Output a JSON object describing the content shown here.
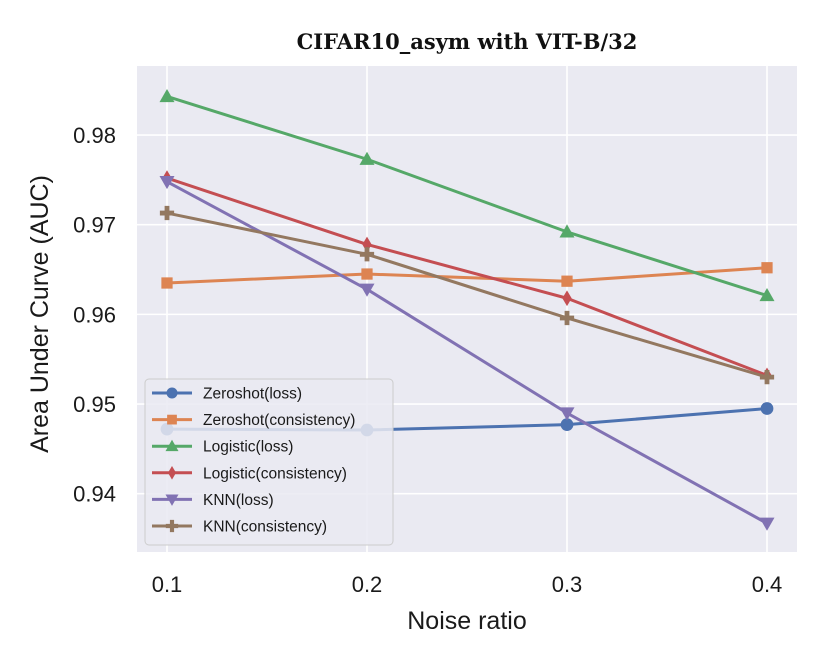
{
  "chart_data": {
    "type": "line",
    "title": "CIFAR10_asym with VIT-B/32",
    "xlabel": "Noise ratio",
    "ylabel": "Area Under Curve (AUC)",
    "x": [
      0.1,
      0.2,
      0.3,
      0.4
    ],
    "x_ticks": [
      "0.1",
      "0.2",
      "0.3",
      "0.4"
    ],
    "xlim": [
      0.085,
      0.415
    ],
    "y_ticks": [
      "0.94",
      "0.95",
      "0.96",
      "0.97",
      "0.98"
    ],
    "ylim": [
      0.9335,
      0.9877
    ],
    "grid": true,
    "legend_position": "lower-left",
    "series": [
      {
        "name": "Zeroshot(loss)",
        "color": "#4c72b0",
        "marker": "circle",
        "values": [
          0.9472,
          0.9471,
          0.9477,
          0.9495
        ]
      },
      {
        "name": "Zeroshot(consistency)",
        "color": "#dd8452",
        "marker": "square",
        "values": [
          0.9635,
          0.9645,
          0.9637,
          0.9652
        ]
      },
      {
        "name": "Logistic(loss)",
        "color": "#55a868",
        "marker": "triangle-up",
        "values": [
          0.9843,
          0.9773,
          0.9692,
          0.9621
        ]
      },
      {
        "name": "Logistic(consistency)",
        "color": "#c44e52",
        "marker": "diamond",
        "values": [
          0.9752,
          0.9678,
          0.9618,
          0.9532
        ]
      },
      {
        "name": "KNN(loss)",
        "color": "#8172b3",
        "marker": "triangle-down",
        "values": [
          0.9748,
          0.9628,
          0.949,
          0.9367
        ]
      },
      {
        "name": "KNN(consistency)",
        "color": "#937860",
        "marker": "plus",
        "values": [
          0.9713,
          0.9667,
          0.9596,
          0.953
        ]
      }
    ]
  }
}
